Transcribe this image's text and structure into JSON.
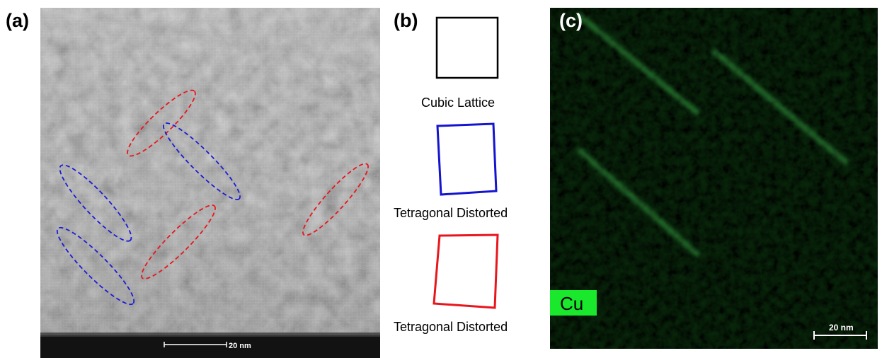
{
  "figure": {
    "panel_a": {
      "label": "(a)",
      "scale_bar_text": "20 nm",
      "ellipse_colors": {
        "red": "#e8161c",
        "blue": "#1b1bd6"
      }
    },
    "panel_b": {
      "label": "(b)",
      "items": [
        {
          "caption": "Cubic Lattice",
          "color": "#000000"
        },
        {
          "caption": "Tetragonal Distorted",
          "color": "#1414d0"
        },
        {
          "caption": "Tetragonal Distorted",
          "color": "#e8161c"
        }
      ]
    },
    "panel_c": {
      "label": "(c)",
      "element_label": "Cu",
      "element_label_color": "#19e82c",
      "scale_bar_text": "20 nm"
    }
  }
}
